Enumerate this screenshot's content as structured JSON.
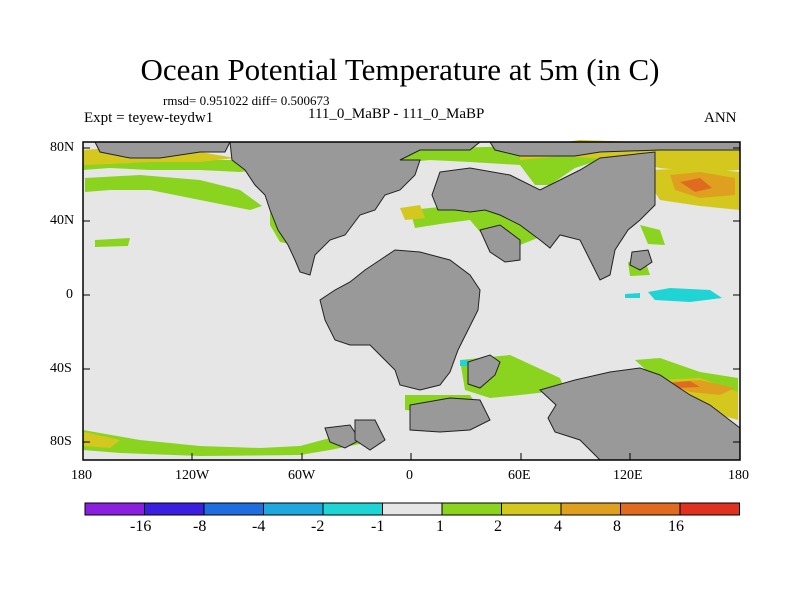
{
  "title": "Ocean Potential Temperature at 5m (in C)",
  "stats": "rmsd= 0.951022  diff= 0.500673",
  "expt": "Expt = teyew-teydw1",
  "case": "111_0_MaBP - 111_0_MaBP",
  "season": "ANN",
  "y_ticks": [
    "80N",
    "40N",
    "0",
    "40S",
    "80S"
  ],
  "x_ticks": [
    "180",
    "120W",
    "60W",
    "0",
    "60E",
    "120E",
    "180"
  ],
  "colorbar": {
    "labels": [
      "-16",
      "-8",
      "-4",
      "-2",
      "-1",
      "1",
      "2",
      "4",
      "8",
      "16"
    ],
    "colors": [
      "#8a1fe0",
      "#3a1fe0",
      "#1f6ee0",
      "#1fa8e0",
      "#1fd4d4",
      "#e6e6e6",
      "#8ad41f",
      "#d4c81f",
      "#e0a01f",
      "#e06a1f",
      "#e0301f"
    ]
  },
  "colors": {
    "land": "#999999",
    "ocean_neutral": "#e6e6e6",
    "pos_1_2": "#8ad41f",
    "pos_2_4": "#d4c81f",
    "pos_4_8": "#e0a01f",
    "pos_8_16": "#e06a1f",
    "neg_1_2": "#1fd4d4"
  }
}
